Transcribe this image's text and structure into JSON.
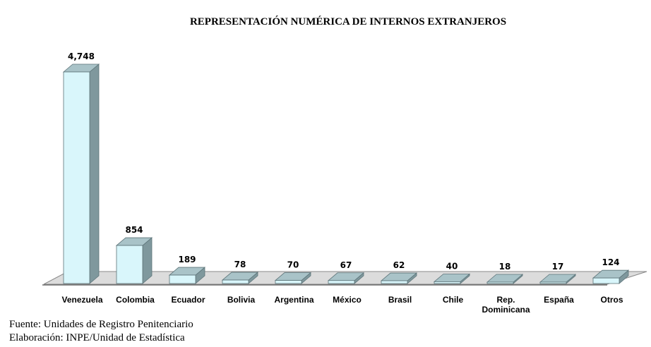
{
  "chart_data": {
    "type": "bar",
    "title": "REPRESENTACIÓN NUMÉRICA DE INTERNOS EXTRANJEROS",
    "categories": [
      "Venezuela",
      "Colombia",
      "Ecuador",
      "Bolivia",
      "Argentina",
      "México",
      "Brasil",
      "Chile",
      "Rep. Dominicana",
      "España",
      "Otros"
    ],
    "category_lines": [
      [
        "Venezuela"
      ],
      [
        "Colombia"
      ],
      [
        "Ecuador"
      ],
      [
        "Bolivia"
      ],
      [
        "Argentina"
      ],
      [
        "México"
      ],
      [
        "Brasil"
      ],
      [
        "Chile"
      ],
      [
        "Rep.",
        "Dominicana"
      ],
      [
        "España"
      ],
      [
        "Otros"
      ]
    ],
    "values": [
      4748,
      854,
      189,
      78,
      70,
      67,
      62,
      40,
      18,
      17,
      124
    ],
    "value_labels": [
      "4,748",
      "854",
      "189",
      "78",
      "70",
      "67",
      "62",
      "40",
      "18",
      "17",
      "124"
    ],
    "xlabel": "",
    "ylabel": "",
    "ylim": [
      0,
      4748
    ],
    "grid": false,
    "colors": {
      "bar_front": "#d9f6fb",
      "bar_top": "#a9c3c8",
      "bar_side": "#7f989d",
      "bar_edge": "#5d7479",
      "floor": "#dcdcdc",
      "floor_edge": "#8a8a8a"
    }
  },
  "footer": {
    "source": "Fuente: Unidades de Registro Penitenciario",
    "elaboration": "Elaboración: INPE/Unidad de Estadística"
  }
}
